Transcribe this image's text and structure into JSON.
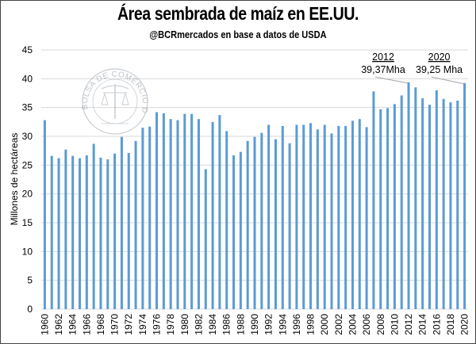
{
  "chart_data": {
    "type": "bar",
    "title": "Área sembrada de maíz en EE.UU.",
    "subtitle": "@BCRmercados  en base a datos de USDA",
    "xlabel": "",
    "ylabel": "Millones de hectáreas",
    "ylim": [
      0,
      45
    ],
    "yticks": [
      0,
      5,
      10,
      15,
      20,
      25,
      30,
      35,
      40,
      45
    ],
    "grid": true,
    "legend": "none",
    "bar_color": "#5B9BD5",
    "categories": [
      "1960",
      "1961",
      "1962",
      "1963",
      "1964",
      "1965",
      "1966",
      "1967",
      "1968",
      "1969",
      "1970",
      "1971",
      "1972",
      "1973",
      "1974",
      "1975",
      "1976",
      "1977",
      "1978",
      "1979",
      "1980",
      "1981",
      "1982",
      "1983",
      "1984",
      "1985",
      "1986",
      "1987",
      "1988",
      "1989",
      "1990",
      "1991",
      "1992",
      "1993",
      "1994",
      "1995",
      "1996",
      "1997",
      "1998",
      "1999",
      "2000",
      "2001",
      "2002",
      "2003",
      "2004",
      "2005",
      "2006",
      "2007",
      "2008",
      "2009",
      "2010",
      "2011",
      "2012",
      "2013",
      "2014",
      "2015",
      "2016",
      "2017",
      "2018",
      "2019",
      "2020"
    ],
    "xtick_labels": [
      "1960",
      "1962",
      "1964",
      "1966",
      "1968",
      "1970",
      "1972",
      "1974",
      "1976",
      "1978",
      "1980",
      "1982",
      "1984",
      "1986",
      "1988",
      "1990",
      "1992",
      "1994",
      "1996",
      "1998",
      "2000",
      "2002",
      "2004",
      "2006",
      "2008",
      "2010",
      "2012",
      "2014",
      "2016",
      "2018",
      "2020"
    ],
    "values": [
      32.8,
      26.6,
      26.2,
      27.7,
      26.6,
      26.2,
      26.7,
      28.7,
      26.3,
      26.0,
      27.0,
      29.9,
      27.1,
      29.2,
      31.5,
      31.7,
      34.2,
      34.0,
      33.0,
      32.8,
      33.9,
      33.9,
      33.0,
      24.3,
      32.5,
      33.7,
      30.9,
      26.7,
      27.3,
      29.2,
      29.9,
      30.6,
      32.0,
      29.5,
      31.8,
      28.8,
      32.0,
      32.0,
      32.3,
      31.2,
      32.0,
      30.5,
      31.8,
      31.8,
      32.7,
      33.0,
      31.6,
      37.8,
      34.7,
      34.9,
      35.6,
      37.1,
      39.37,
      38.5,
      36.6,
      35.5,
      38.0,
      36.5,
      35.9,
      36.2,
      39.25
    ],
    "annotations": [
      {
        "year": "2012",
        "label": "39,37Mha",
        "value": 39.37
      },
      {
        "year": "2020",
        "label": "39,25 Mha",
        "value": 39.25
      }
    ],
    "watermark": "BOLSA DE COMERCIO DE ROSARIO"
  }
}
